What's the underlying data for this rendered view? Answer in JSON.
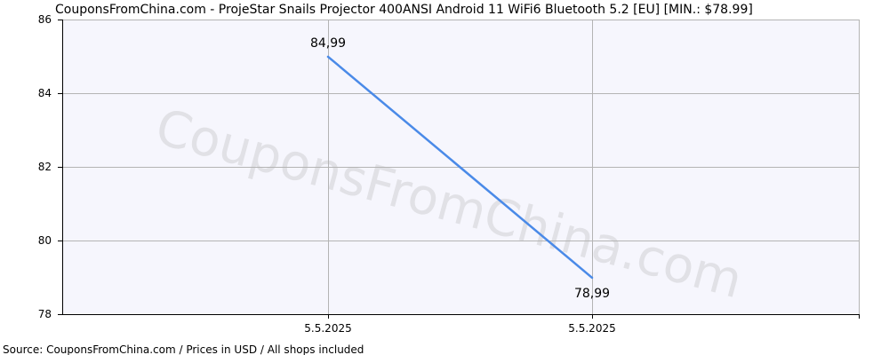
{
  "title": "CouponsFromChina.com - ProjeStar Snails Projector 400ANSI Android 11 WiFi6 Bluetooth 5.2 [EU] [MIN.: $78.99]",
  "source": "Source:  CouponsFromChina.com / Prices in USD / All shops included",
  "watermark": "CouponsFromChina.com",
  "colors": {
    "line": "#4a8ae8",
    "plot_bg": "#f6f6fd",
    "grid": "#b4b4b4",
    "axis": "#000000"
  },
  "chart_data": {
    "type": "line",
    "title": "CouponsFromChina.com - ProjeStar Snails Projector 400ANSI Android 11 WiFi6 Bluetooth 5.2 [EU] [MIN.: $78.99]",
    "xlabel": "",
    "ylabel": "",
    "categories": [
      "5.5.2025",
      "5.5.2025"
    ],
    "series": [
      {
        "values": [
          84.99,
          78.99
        ],
        "labels": [
          "84,99",
          "78,99"
        ]
      }
    ],
    "ylim": [
      78,
      86
    ],
    "yticks": [
      78,
      80,
      82,
      84,
      86
    ],
    "grid": true,
    "legend": "none"
  }
}
